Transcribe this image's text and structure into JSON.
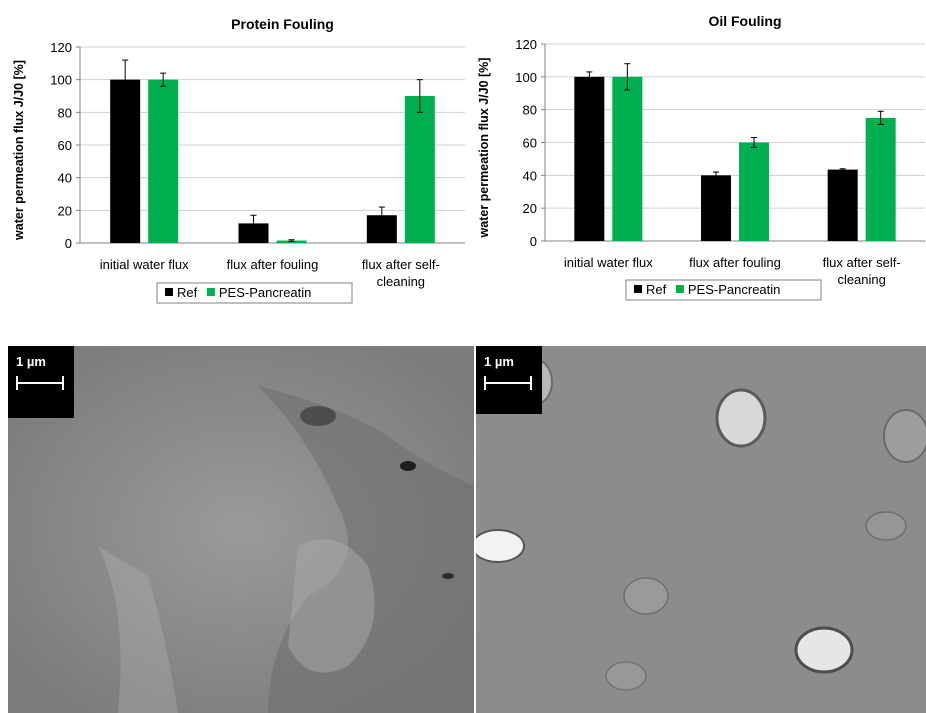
{
  "chart_data": [
    {
      "type": "bar",
      "title": "Protein Fouling",
      "ylabel": "water permeation flux J/J0 [%]",
      "xlabel": "",
      "ylim": [
        0,
        120
      ],
      "yticks": [
        0,
        20,
        40,
        60,
        80,
        100,
        120
      ],
      "categories": [
        [
          "initial water flux"
        ],
        [
          "flux after fouling"
        ],
        [
          "flux after self-",
          "cleaning"
        ]
      ],
      "series": [
        {
          "name": "Ref",
          "color": "#000000",
          "values": [
            100,
            12,
            17
          ],
          "errors": [
            12,
            5,
            5
          ]
        },
        {
          "name": "PES-Pancreatin",
          "color": "#00b050",
          "values": [
            100,
            1.5,
            90
          ],
          "errors": [
            4,
            0.5,
            10
          ]
        }
      ],
      "grid": true,
      "legend": "bottom"
    },
    {
      "type": "bar",
      "title": "Oil Fouling",
      "ylabel": "water permeation flux J/J0 [%]",
      "xlabel": "",
      "ylim": [
        0,
        120
      ],
      "yticks": [
        0,
        20,
        40,
        60,
        80,
        100,
        120
      ],
      "categories": [
        [
          "initial water flux"
        ],
        [
          "flux after fouling"
        ],
        [
          "flux after self-",
          "cleaning"
        ]
      ],
      "series": [
        {
          "name": "Ref",
          "color": "#000000",
          "values": [
            100,
            40,
            43.5
          ],
          "errors": [
            3,
            2,
            0.5
          ]
        },
        {
          "name": "PES-Pancreatin",
          "color": "#00b050",
          "values": [
            100,
            60,
            75
          ],
          "errors": [
            8,
            3,
            4
          ]
        }
      ],
      "grid": true,
      "legend": "bottom"
    }
  ],
  "images": {
    "left": {
      "scale_label": "1 µm"
    },
    "right": {
      "scale_label": "1 µm"
    }
  }
}
